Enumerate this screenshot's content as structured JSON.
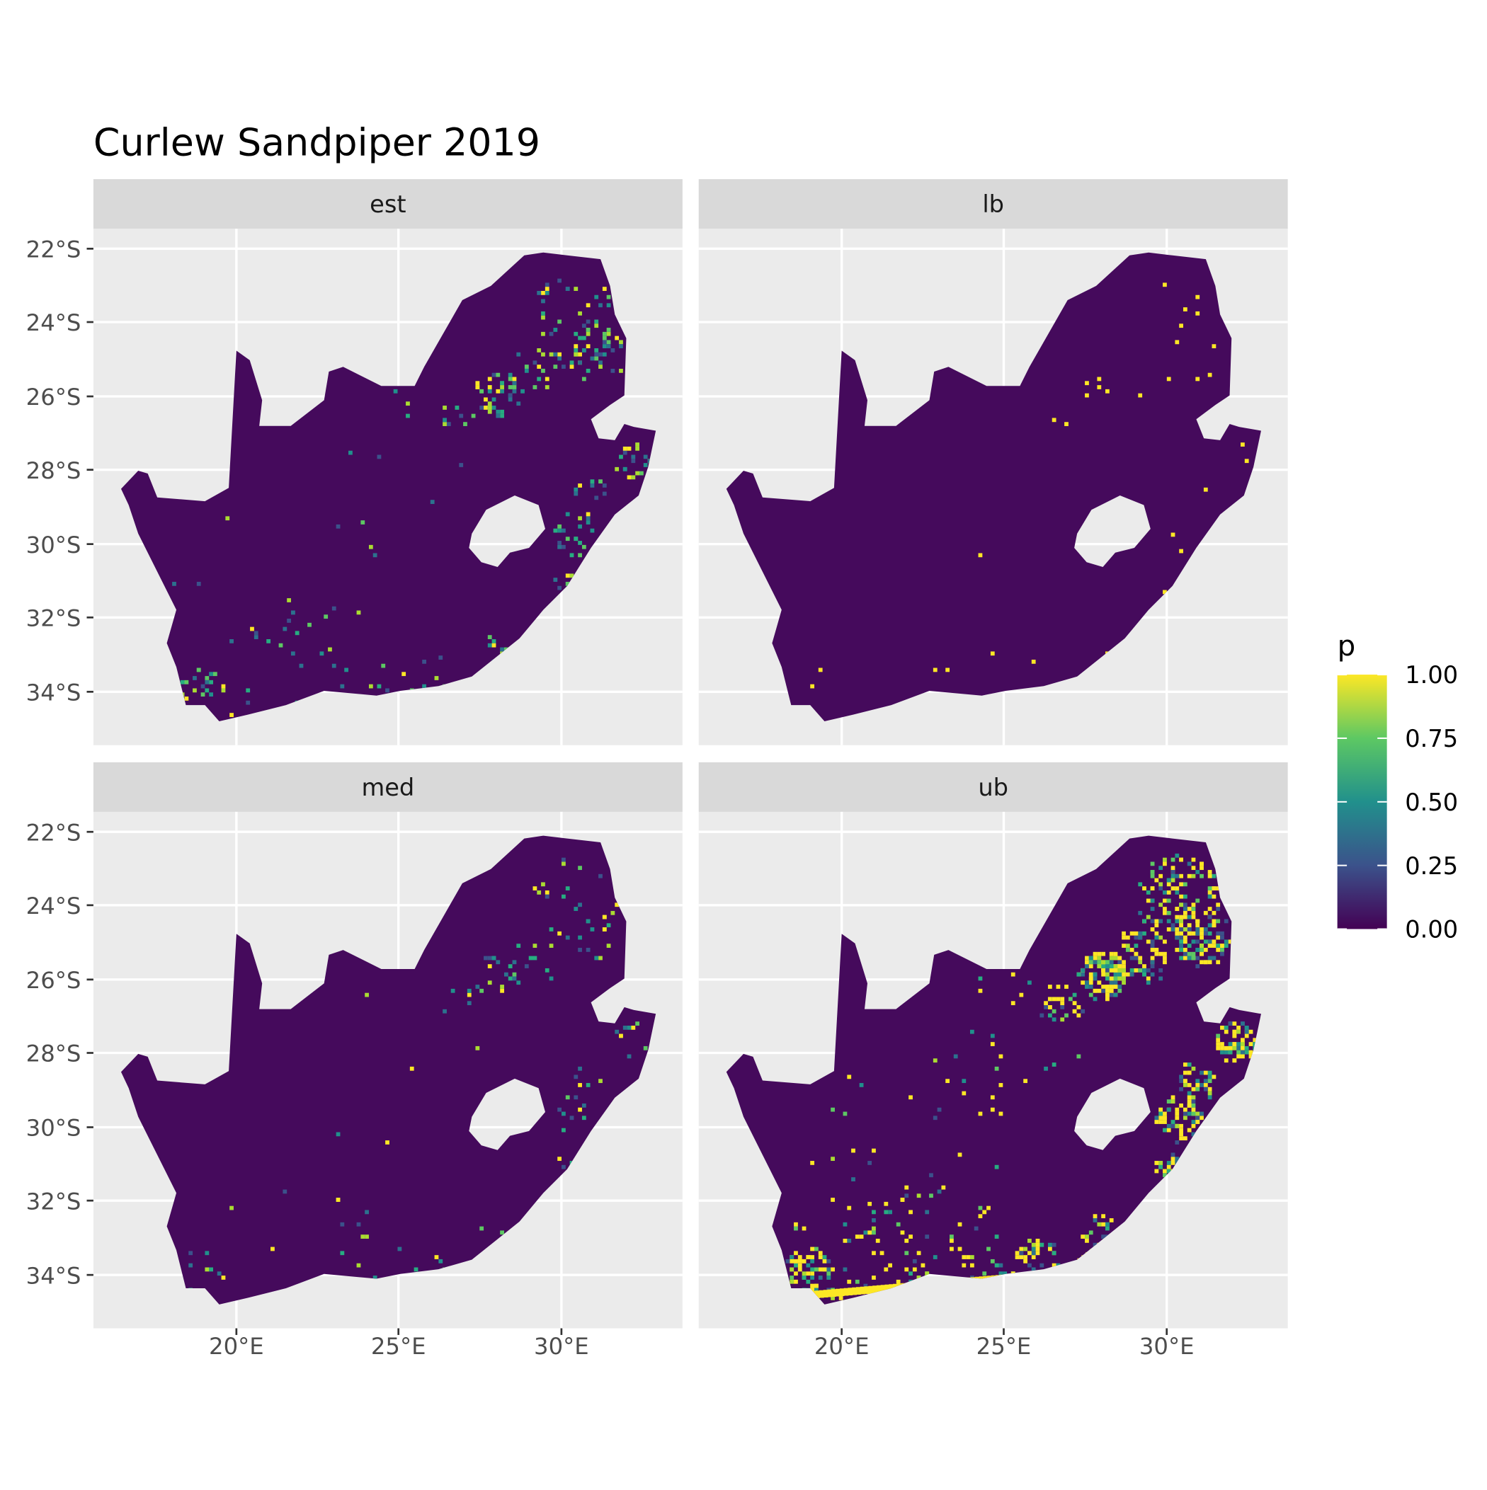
{
  "title": "Curlew Sandpiper 2019",
  "panels": [
    {
      "label": "est",
      "intensity": "moderate"
    },
    {
      "label": "lb",
      "intensity": "low"
    },
    {
      "label": "med",
      "intensity": "low-moderate"
    },
    {
      "label": "ub",
      "intensity": "high"
    }
  ],
  "y_ticks": [
    "22°S",
    "24°S",
    "26°S",
    "28°S",
    "30°S",
    "32°S",
    "34°S"
  ],
  "x_ticks": [
    "20°E",
    "25°E",
    "30°E"
  ],
  "legend": {
    "title": "p",
    "ticks": [
      "1.00",
      "0.75",
      "0.50",
      "0.25",
      "0.00"
    ],
    "range": [
      0,
      1
    ],
    "palette": "viridis"
  },
  "colors": {
    "panel_bg": "#EBEBEB",
    "strip_bg": "#D9D9D9",
    "grid": "#FFFFFF",
    "low": "#440154",
    "high": "#FDE725"
  }
}
